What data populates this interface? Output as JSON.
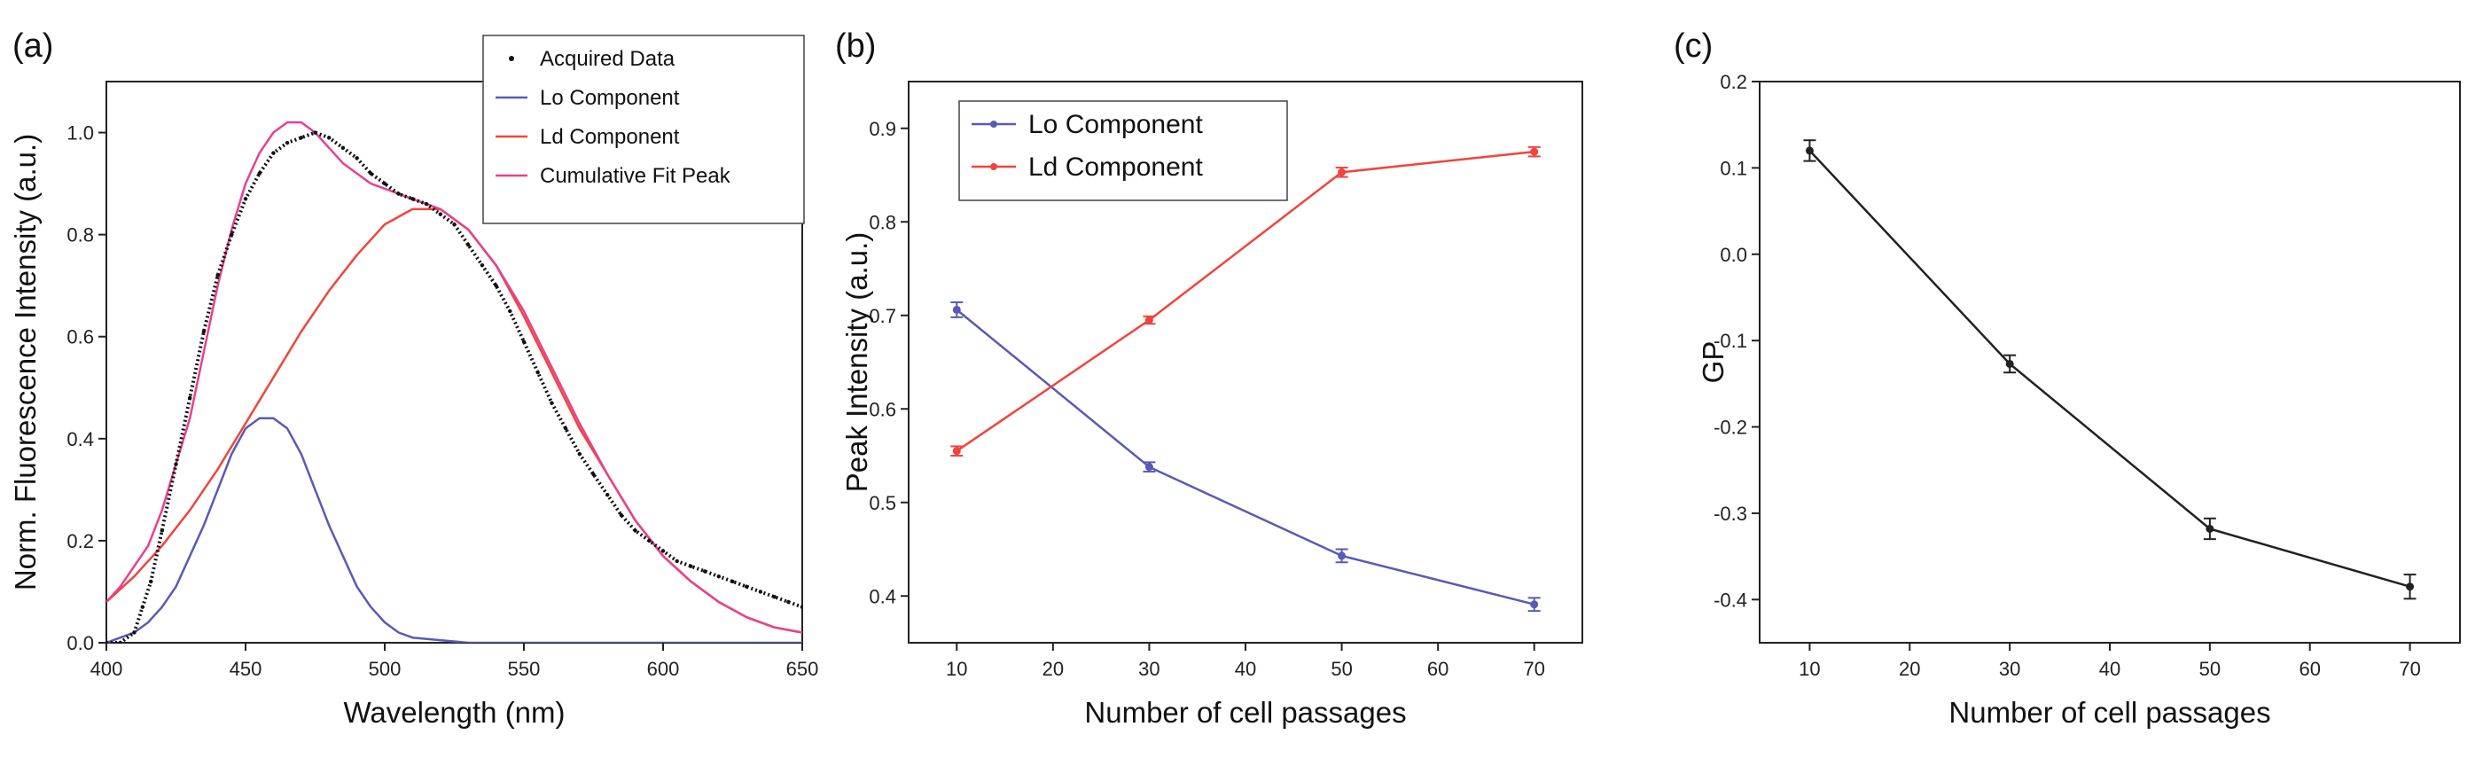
{
  "figure": {
    "panels": [
      {
        "label": "(a)",
        "title": "",
        "xlabel": "Wavelength (nm)",
        "ylabel": "Norm. Fluorescence Intensity (a.u.)"
      },
      {
        "label": "(b)",
        "title": "",
        "xlabel": "Number of cell passages",
        "ylabel": "Peak Intensity (a.u.)"
      },
      {
        "label": "(c)",
        "title": "",
        "xlabel": "Number of cell passages",
        "ylabel": "GP"
      }
    ]
  },
  "chart_data": [
    {
      "type": "line",
      "title": "",
      "xlabel": "Wavelength (nm)",
      "ylabel": "Norm. Fluorescence Intensity (a.u.)",
      "xlim": [
        400,
        650
      ],
      "ylim": [
        0,
        1.1
      ],
      "xticks": [
        "400",
        "450",
        "500",
        "550",
        "600",
        "650"
      ],
      "yticks": [
        "0.0",
        "0.2",
        "0.4",
        "0.6",
        "0.8",
        "1.0"
      ],
      "legend_position": "top-right",
      "colors": {
        "Acquired Data": "#111111",
        "Lo Component": "#5a5ab4",
        "Ld Component": "#f0453c",
        "Cumulative Fit Peak": "#e8418c"
      },
      "series": [
        {
          "name": "Acquired Data",
          "style": "dotted",
          "x": [
            400,
            405,
            410,
            413,
            416,
            420,
            425,
            430,
            435,
            440,
            445,
            450,
            455,
            460,
            465,
            470,
            475,
            480,
            485,
            490,
            495,
            500,
            505,
            510,
            515,
            520,
            525,
            530,
            535,
            540,
            545,
            550,
            555,
            560,
            565,
            570,
            575,
            580,
            585,
            590,
            595,
            600,
            605,
            610,
            615,
            620,
            625,
            630,
            635,
            640,
            645,
            650
          ],
          "y": [
            0.0,
            0.0,
            0.02,
            0.07,
            0.12,
            0.22,
            0.35,
            0.48,
            0.61,
            0.72,
            0.8,
            0.87,
            0.92,
            0.96,
            0.98,
            0.99,
            1.0,
            0.99,
            0.97,
            0.95,
            0.92,
            0.9,
            0.88,
            0.87,
            0.86,
            0.84,
            0.82,
            0.78,
            0.74,
            0.7,
            0.65,
            0.59,
            0.53,
            0.47,
            0.42,
            0.37,
            0.33,
            0.29,
            0.25,
            0.22,
            0.2,
            0.18,
            0.16,
            0.15,
            0.14,
            0.13,
            0.12,
            0.11,
            0.1,
            0.09,
            0.08,
            0.07
          ]
        },
        {
          "name": "Lo Component",
          "style": "solid",
          "x": [
            400,
            405,
            410,
            415,
            420,
            425,
            430,
            435,
            440,
            445,
            450,
            455,
            460,
            465,
            470,
            475,
            480,
            485,
            490,
            495,
            500,
            505,
            510,
            520,
            530,
            540,
            560,
            600,
            650
          ],
          "y": [
            0.0,
            0.01,
            0.02,
            0.04,
            0.07,
            0.11,
            0.17,
            0.23,
            0.3,
            0.37,
            0.42,
            0.44,
            0.44,
            0.42,
            0.37,
            0.3,
            0.23,
            0.17,
            0.11,
            0.07,
            0.04,
            0.02,
            0.01,
            0.005,
            0.0,
            0.0,
            0.0,
            0.0,
            0.0
          ]
        },
        {
          "name": "Ld Component",
          "style": "solid",
          "x": [
            400,
            410,
            420,
            430,
            440,
            450,
            460,
            470,
            480,
            490,
            500,
            510,
            520,
            530,
            540,
            550,
            560,
            570,
            580,
            590,
            600,
            610,
            620,
            630,
            640,
            650
          ],
          "y": [
            0.08,
            0.13,
            0.19,
            0.26,
            0.34,
            0.43,
            0.52,
            0.61,
            0.69,
            0.76,
            0.82,
            0.85,
            0.85,
            0.81,
            0.74,
            0.64,
            0.53,
            0.42,
            0.33,
            0.24,
            0.17,
            0.12,
            0.08,
            0.05,
            0.03,
            0.02
          ]
        },
        {
          "name": "Cumulative Fit Peak",
          "style": "solid",
          "x": [
            400,
            405,
            410,
            415,
            420,
            425,
            430,
            435,
            440,
            445,
            450,
            455,
            460,
            465,
            470,
            475,
            480,
            485,
            490,
            495,
            500,
            505,
            510,
            515,
            520,
            530,
            540,
            550,
            560,
            570,
            580,
            590,
            600,
            610,
            620,
            630,
            640,
            650
          ],
          "y": [
            0.08,
            0.11,
            0.15,
            0.19,
            0.26,
            0.35,
            0.44,
            0.57,
            0.7,
            0.81,
            0.9,
            0.96,
            1.0,
            1.02,
            1.02,
            1.0,
            0.97,
            0.94,
            0.92,
            0.9,
            0.89,
            0.88,
            0.87,
            0.86,
            0.85,
            0.81,
            0.74,
            0.65,
            0.54,
            0.43,
            0.33,
            0.24,
            0.17,
            0.12,
            0.08,
            0.05,
            0.03,
            0.02
          ]
        }
      ]
    },
    {
      "type": "line",
      "title": "",
      "xlabel": "Number of cell passages",
      "ylabel": "Peak Intensity (a.u.)",
      "xlim": [
        5,
        75
      ],
      "ylim": [
        0.35,
        0.95
      ],
      "xticks": [
        "10",
        "20",
        "30",
        "40",
        "50",
        "60",
        "70"
      ],
      "yticks": [
        "0.4",
        "0.5",
        "0.6",
        "0.7",
        "0.8",
        "0.9"
      ],
      "legend_position": "top-left",
      "x": [
        10,
        30,
        50,
        70
      ],
      "series": [
        {
          "name": "Lo Component",
          "color": "#5a5ab4",
          "values": [
            0.706,
            0.538,
            0.443,
            0.391
          ],
          "errors": [
            0.008,
            0.005,
            0.007,
            0.007
          ]
        },
        {
          "name": "Ld Component",
          "color": "#f0453c",
          "values": [
            0.555,
            0.695,
            0.853,
            0.875
          ],
          "errors": [
            0.005,
            0.004,
            0.005,
            0.005
          ]
        }
      ]
    },
    {
      "type": "line",
      "title": "",
      "xlabel": "Number of cell passages",
      "ylabel": "GP",
      "xlim": [
        5,
        75
      ],
      "ylim": [
        -0.45,
        0.2
      ],
      "xticks": [
        "10",
        "20",
        "30",
        "40",
        "50",
        "60",
        "70"
      ],
      "yticks": [
        "0.2",
        "0.1",
        "0.0",
        "-0.1",
        "-0.2",
        "-0.3",
        "-0.4"
      ],
      "x": [
        10,
        30,
        50,
        70
      ],
      "series": [
        {
          "name": "GP",
          "color": "#222222",
          "values": [
            0.12,
            -0.127,
            -0.318,
            -0.385
          ],
          "errors": [
            0.012,
            0.01,
            0.012,
            0.014
          ]
        }
      ]
    }
  ]
}
